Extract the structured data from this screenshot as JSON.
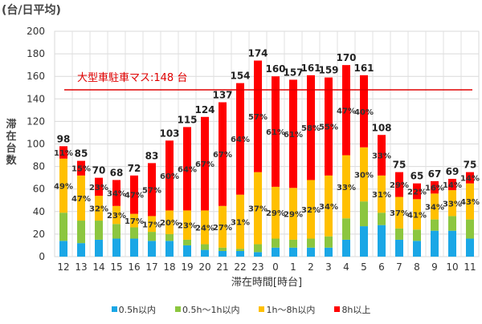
{
  "chart_data": {
    "type": "bar",
    "stacked": true,
    "unit_label": "(台/日平均)",
    "ylabel": "滞在台数",
    "xlabel": "滞在時間[時台]",
    "ylim": [
      0,
      200
    ],
    "yticks": [
      0,
      20,
      40,
      60,
      80,
      100,
      120,
      140,
      160,
      180,
      200
    ],
    "grid": true,
    "legend_position": "bottom",
    "categories": [
      "12",
      "13",
      "14",
      "15",
      "16",
      "17",
      "18",
      "19",
      "20",
      "21",
      "22",
      "23",
      "0",
      "1",
      "2",
      "3",
      "4",
      "5",
      "6",
      "7",
      "8",
      "9",
      "10",
      "11"
    ],
    "totals": [
      98,
      85,
      70,
      68,
      72,
      83,
      103,
      115,
      124,
      137,
      154,
      174,
      160,
      157,
      161,
      159,
      170,
      161,
      108,
      75,
      65,
      67,
      69,
      75
    ],
    "series": [
      {
        "name": "0.5h以内",
        "color": "#1aa7e6",
        "values": [
          14,
          12,
          15,
          16,
          16,
          14,
          14,
          10,
          6,
          5,
          5,
          4,
          8,
          8,
          8,
          8,
          15,
          27,
          28,
          15,
          14,
          23,
          23,
          16
        ]
      },
      {
        "name": "0.5h～1h以内",
        "color": "#8cc63f",
        "values": [
          25,
          20,
          17,
          13,
          10,
          8,
          6,
          5,
          5,
          3,
          2,
          7,
          8,
          7,
          8,
          10,
          19,
          22,
          11,
          10,
          10,
          10,
          13,
          17
        ]
      },
      {
        "name": "1h～8h以内",
        "color": "#ffc000",
        "pct_labels": [
          "49%",
          "47%",
          "32%",
          "23%",
          "17%",
          "17%",
          "20%",
          "23%",
          "24%",
          "27%",
          "31%",
          "37%",
          "29%",
          "29%",
          "32%",
          "34%",
          "33%",
          "30%",
          "31%",
          "37%",
          "41%",
          "34%",
          "33%",
          "43%"
        ],
        "values": [
          48,
          40,
          22,
          16,
          12,
          14,
          21,
          26,
          30,
          37,
          48,
          64,
          46,
          46,
          52,
          54,
          56,
          48,
          33,
          28,
          27,
          23,
          23,
          32
        ]
      },
      {
        "name": "8h以上",
        "color": "#ff0000",
        "pct_labels": [
          "11%",
          "15%",
          "23%",
          "34%",
          "47%",
          "57%",
          "60%",
          "64%",
          "67%",
          "67%",
          "64%",
          "57%",
          "61%",
          "61%",
          "58%",
          "55%",
          "47%",
          "40%",
          "33%",
          "29%",
          "22%",
          "16%",
          "14%",
          "14%"
        ],
        "values": [
          11,
          13,
          16,
          23,
          34,
          47,
          62,
          74,
          83,
          92,
          99,
          99,
          98,
          96,
          93,
          87,
          80,
          64,
          36,
          22,
          14,
          11,
          10,
          10
        ]
      }
    ],
    "reference_line": {
      "value": 148,
      "label": "大型車駐車マス:148 台",
      "color": "#e00000"
    }
  }
}
